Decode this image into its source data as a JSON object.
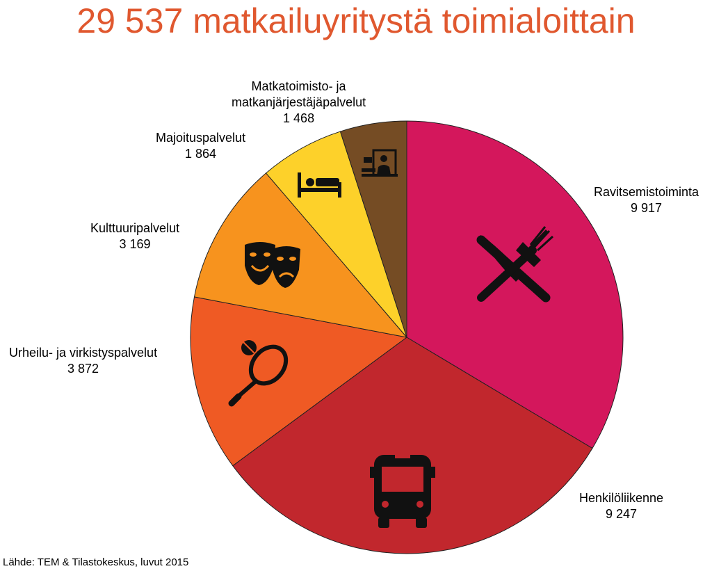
{
  "chart_data": {
    "type": "pie",
    "title": "29 537 matkailuyritystä toimialoittain",
    "source": "Lähde: TEM & Tilastokeskus, luvut 2015",
    "slices": [
      {
        "name": "Ravitsemistoiminta",
        "value": 9917,
        "value_label": "9 917",
        "color": "#d4175c",
        "icon": "fork-knife-icon"
      },
      {
        "name": "Henkilöliikenne",
        "value": 9247,
        "value_label": "9 247",
        "color": "#c1272d",
        "icon": "bus-icon"
      },
      {
        "name": "Urheilu- ja virkistyspalvelut",
        "value": 3872,
        "value_label": "3 872",
        "color": "#ef5a24",
        "icon": "tennis-racket-icon"
      },
      {
        "name": "Kulttuuripalvelut",
        "value": 3169,
        "value_label": "3 169",
        "color": "#f7931e",
        "icon": "theater-masks-icon"
      },
      {
        "name": "Majoituspalvelut",
        "value": 1864,
        "value_label": "1 864",
        "color": "#fdd12a",
        "icon": "bed-icon"
      },
      {
        "name_lines": [
          "Matkatoimisto- ja",
          "matkanjärjestäjäpalvelut"
        ],
        "value": 1468,
        "value_label": "1 468",
        "color": "#754c24",
        "icon": "travel-agent-icon"
      }
    ]
  }
}
